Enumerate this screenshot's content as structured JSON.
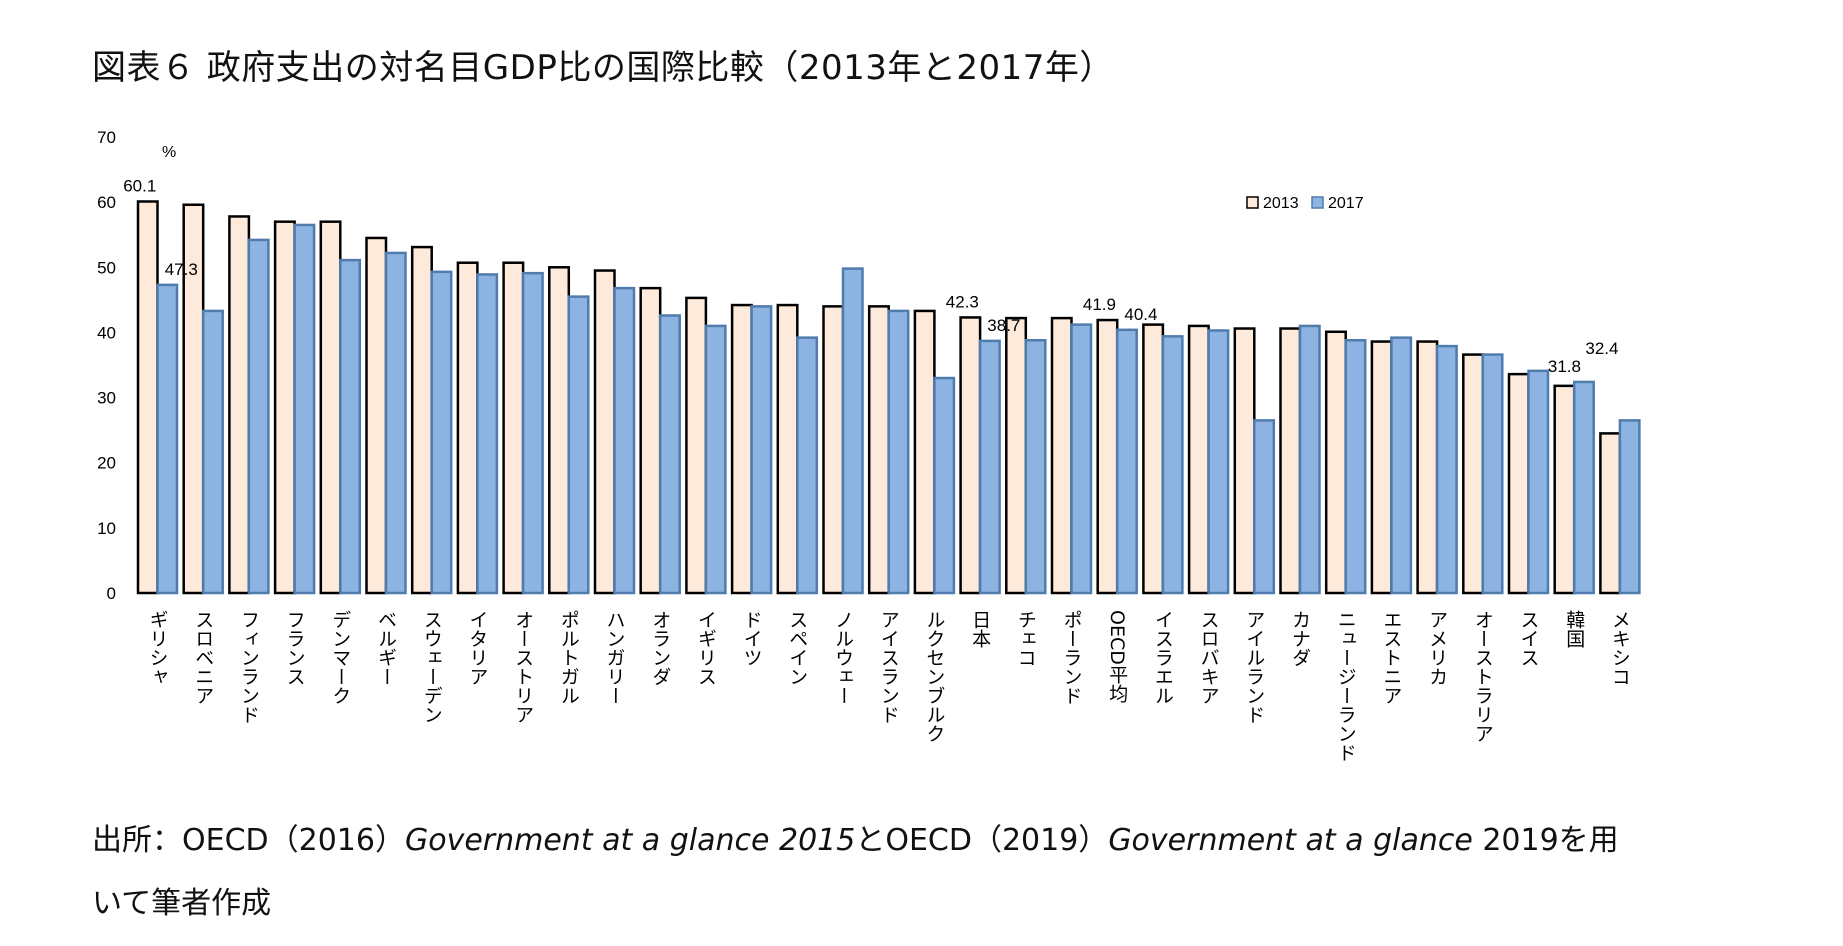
{
  "title": "図表６ 政府支出の対名目GDP比の国際比較（2013年と2017年）",
  "source": {
    "line1": [
      {
        "text": "出所：OECD（2016）",
        "italic": false
      },
      {
        "text": "Government at a glance 2015",
        "italic": true
      },
      {
        "text": "とOECD（2019）",
        "italic": false
      },
      {
        "text": "Government at a glance",
        "italic": true
      },
      {
        "text": " 2019を用",
        "italic": false
      }
    ],
    "line2": "いて筆者作成"
  },
  "chart_data": {
    "type": "bar",
    "title": "",
    "ylabel": "%",
    "xlabel": "",
    "ylim": [
      0,
      70
    ],
    "yticks": [
      0,
      10,
      20,
      30,
      40,
      50,
      60,
      70
    ],
    "grid": false,
    "legend_placement": "top-right",
    "colors": {
      "2013": "#fdeadb",
      "2013_border": "#000000",
      "2017": "#8db3e2",
      "2017_border": "#4f7cac"
    },
    "categories": [
      "ギリシャ",
      "スロベニア",
      "フィンランド",
      "フランス",
      "デンマーク",
      "ベルギー",
      "スウェーデン",
      "イタリア",
      "オーストリア",
      "ポルトガル",
      "ハンガリー",
      "オランダ",
      "イギリス",
      "ドイツ",
      "スペイン",
      "ノルウェー",
      "アイスランド",
      "ルクセンブルク",
      "日本",
      "チェコ",
      "ポーランド",
      "OECD平均",
      "イスラエル",
      "スロバキア",
      "アイルランド",
      "カナダ",
      "ニュージーランド",
      "エストニア",
      "アメリカ",
      "オーストラリア",
      "スイス",
      "韓国",
      "メキシコ"
    ],
    "series": [
      {
        "name": "2013",
        "values": [
          60.1,
          59.6,
          57.8,
          57.0,
          57.0,
          54.5,
          53.1,
          50.7,
          50.7,
          50.0,
          49.5,
          46.8,
          45.3,
          44.2,
          44.2,
          44.0,
          44.0,
          43.3,
          42.3,
          42.2,
          42.2,
          41.9,
          41.2,
          41.0,
          40.6,
          40.6,
          40.1,
          38.6,
          38.6,
          36.6,
          33.6,
          31.8,
          24.5
        ]
      },
      {
        "name": "2017",
        "values": [
          47.3,
          43.3,
          54.2,
          56.5,
          51.1,
          52.2,
          49.3,
          48.9,
          49.1,
          45.5,
          46.8,
          42.6,
          41.0,
          44.0,
          39.2,
          49.8,
          43.3,
          33.0,
          38.7,
          38.8,
          41.2,
          40.4,
          39.4,
          40.3,
          26.5,
          41.0,
          38.8,
          39.2,
          37.9,
          36.6,
          34.1,
          32.4,
          26.5
        ]
      }
    ],
    "data_labels": [
      {
        "category": "ギリシャ",
        "series": "2013",
        "text": "60.1"
      },
      {
        "category": "ギリシャ",
        "series": "2017",
        "text": "47.3"
      },
      {
        "category": "日本",
        "series": "2013",
        "text": "42.3"
      },
      {
        "category": "日本",
        "series": "2017",
        "text": "38.7"
      },
      {
        "category": "OECD平均",
        "series": "2013",
        "text": "41.9"
      },
      {
        "category": "OECD平均",
        "series": "2017",
        "text": "40.4"
      },
      {
        "category": "韓国",
        "series": "2013",
        "text": "31.8"
      },
      {
        "category": "韓国",
        "series": "2017",
        "text": "32.4"
      }
    ]
  }
}
